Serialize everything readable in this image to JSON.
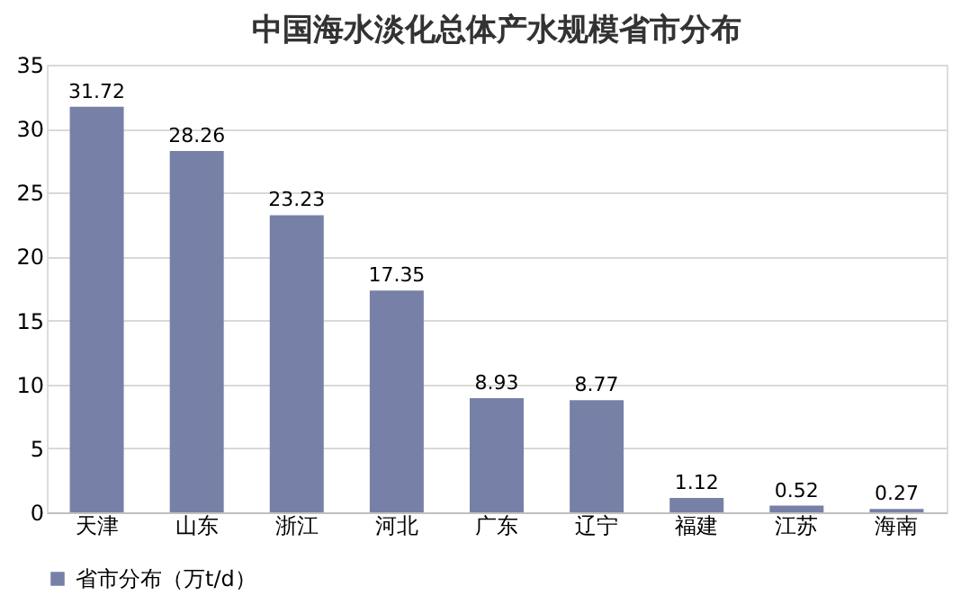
{
  "chart_data": {
    "type": "bar",
    "title": "中国海水淡化总体产水规模省市分布",
    "categories": [
      "天津",
      "山东",
      "浙江",
      "河北",
      "广东",
      "辽宁",
      "福建",
      "江苏",
      "海南"
    ],
    "series": [
      {
        "name": "省市分布（万t/d）",
        "color": "#7780a7",
        "values": [
          31.72,
          28.26,
          23.23,
          17.35,
          8.93,
          8.77,
          1.12,
          0.52,
          0.27
        ]
      }
    ],
    "ylim": [
      0,
      35
    ],
    "yticks": [
      0,
      5,
      10,
      15,
      20,
      25,
      30,
      35
    ],
    "grid": "y",
    "legend": "bottom",
    "data_labels": true
  }
}
